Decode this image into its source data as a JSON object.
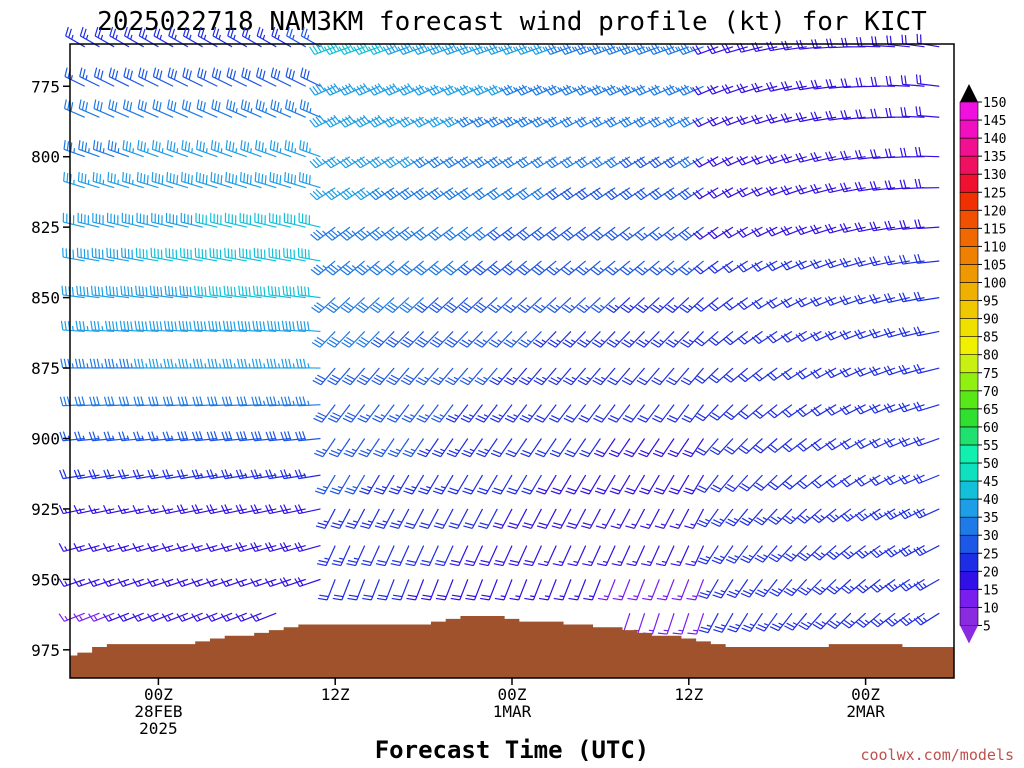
{
  "chart_data": {
    "type": "wind_barb_time_height",
    "title": "2025022718 NAM3KM forecast wind profile (kt) for KICT",
    "xlabel": "Forecast Time (UTC)",
    "ylabel": "",
    "credit": "coolwx.com/models",
    "y_axis": {
      "unit": "hPa",
      "inverted": true,
      "range": [
        985,
        760
      ],
      "ticks": [
        775,
        800,
        825,
        850,
        875,
        900,
        925,
        950,
        975
      ]
    },
    "x_axis": {
      "unit": "forecast hour",
      "range": [
        0,
        60
      ],
      "ticks": [
        {
          "hour": 6,
          "label": [
            "00Z",
            "28FEB",
            "2025"
          ]
        },
        {
          "hour": 18,
          "label": [
            "12Z"
          ]
        },
        {
          "hour": 30,
          "label": [
            "00Z",
            "1MAR"
          ]
        },
        {
          "hour": 42,
          "label": [
            "12Z"
          ]
        },
        {
          "hour": 54,
          "label": [
            "00Z",
            "2MAR"
          ]
        }
      ]
    },
    "barb_levels_hpa": [
      761,
      775,
      786,
      800,
      811,
      825,
      837,
      850,
      862,
      875,
      888,
      900,
      913,
      925,
      938,
      950,
      962,
      973
    ],
    "barb_times_hours": [
      1,
      2,
      3,
      4,
      5,
      6,
      7,
      8,
      9,
      10,
      11,
      12,
      13,
      14,
      15,
      16,
      17,
      18,
      19,
      20,
      21,
      22,
      23,
      24,
      25,
      26,
      27,
      28,
      29,
      30,
      31,
      32,
      33,
      34,
      35,
      36,
      37,
      38,
      39,
      40,
      41,
      42,
      43,
      44,
      45,
      46,
      47,
      48,
      49,
      50,
      51,
      52,
      53,
      54,
      55,
      56,
      57,
      58,
      59
    ],
    "surface_pressure": {
      "hours": [
        0,
        1,
        2,
        3,
        4,
        5,
        6,
        7,
        8,
        9,
        10,
        11,
        12,
        13,
        14,
        15,
        16,
        17,
        18,
        19,
        20,
        21,
        22,
        23,
        24,
        25,
        26,
        27,
        28,
        29,
        30,
        31,
        32,
        33,
        34,
        35,
        36,
        37,
        38,
        39,
        40,
        41,
        42,
        43,
        44,
        45,
        46,
        47,
        48,
        49,
        50,
        51,
        52,
        53,
        54,
        55,
        56,
        57,
        58,
        59,
        60
      ],
      "hpa": [
        977,
        976,
        974,
        973,
        973,
        973,
        973,
        973,
        973,
        972,
        971,
        970,
        970,
        969,
        968,
        967,
        966,
        966,
        966,
        966,
        966,
        966,
        966,
        966,
        966,
        965,
        964,
        963,
        963,
        963,
        964,
        965,
        965,
        965,
        966,
        966,
        967,
        967,
        968,
        969,
        970,
        970,
        971,
        972,
        973,
        974,
        974,
        974,
        974,
        974,
        974,
        974,
        973,
        973,
        973,
        973,
        973,
        974,
        974,
        974,
        974
      ]
    },
    "colorbar": {
      "label_unit": "kt",
      "levels": [
        5,
        10,
        15,
        20,
        25,
        30,
        35,
        40,
        45,
        50,
        55,
        60,
        65,
        70,
        75,
        80,
        85,
        90,
        95,
        100,
        105,
        110,
        115,
        120,
        125,
        130,
        135,
        140,
        145,
        150
      ],
      "colors": [
        "#8a2be2",
        "#7a1ef0",
        "#3010e6",
        "#1d2de6",
        "#1d57e6",
        "#1e7ae6",
        "#1e9ee6",
        "#12c0d8",
        "#0ee0c0",
        "#10f0b0",
        "#20e070",
        "#30e030",
        "#58e818",
        "#90f010",
        "#c8f010",
        "#f0f000",
        "#f0e000",
        "#f0c800",
        "#f0b000",
        "#f09800",
        "#f08000",
        "#f06800",
        "#f05000",
        "#f03000",
        "#f01030",
        "#f01060",
        "#f01090",
        "#f010c0",
        "#f010e0",
        "#e000e0"
      ],
      "end_arrow_colors": {
        "top": "#000000",
        "bottom": "#8a2be2"
      }
    },
    "grid": false,
    "legend": "right"
  }
}
